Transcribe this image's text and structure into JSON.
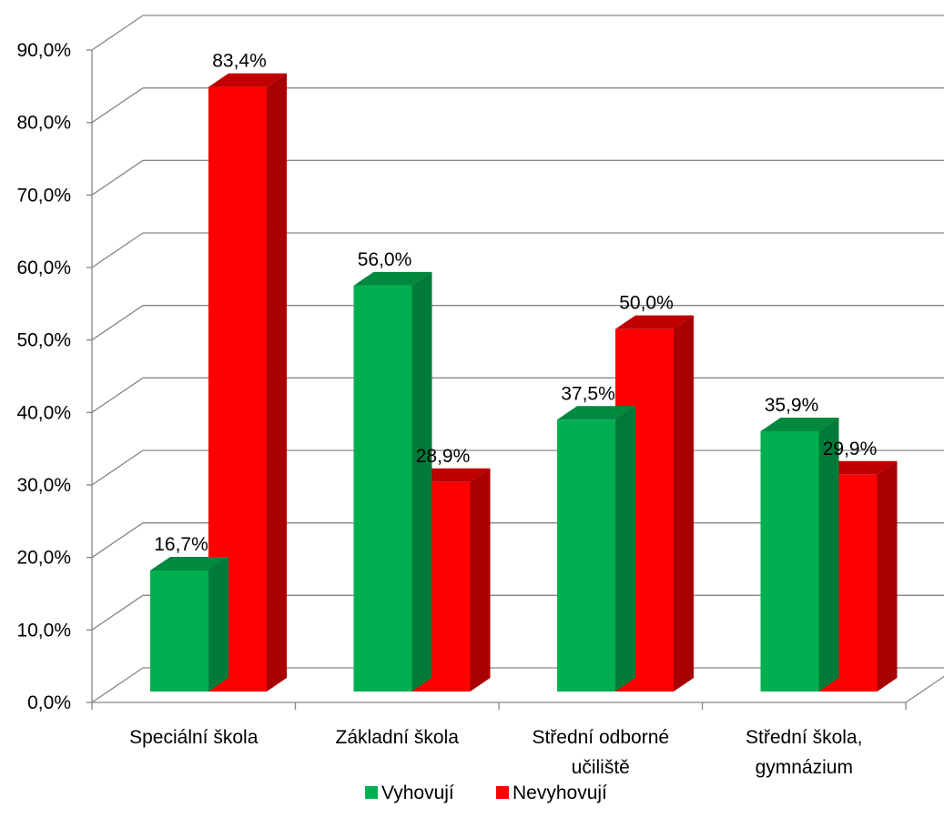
{
  "chart_data": {
    "type": "bar",
    "categories": [
      "Speciální škola",
      "Základní škola",
      "Střední odborné učiliště",
      "Střední škola, gymnázium"
    ],
    "category_lines": [
      [
        "Speciální škola"
      ],
      [
        "Základní škola"
      ],
      [
        "Střední odborné",
        "učiliště"
      ],
      [
        "Střední škola,",
        "gymnázium"
      ]
    ],
    "series": [
      {
        "name": "Vyhovují",
        "values": [
          16.7,
          56.0,
          37.5,
          35.9
        ],
        "labels": [
          "16,7%",
          "56,0%",
          "37,5%",
          "35,9%"
        ],
        "color": "#00b050",
        "side_color": "#007a38",
        "top_color": "#00893f"
      },
      {
        "name": "Nevyhovují",
        "values": [
          83.4,
          28.9,
          50.0,
          29.9
        ],
        "labels": [
          "83,4%",
          "28,9%",
          "50,0%",
          "29,9%"
        ],
        "color": "#ff0000",
        "side_color": "#a80000",
        "top_color": "#c00000"
      }
    ],
    "y_ticks": [
      "0,0%",
      "10,0%",
      "20,0%",
      "30,0%",
      "40,0%",
      "50,0%",
      "60,0%",
      "70,0%",
      "80,0%",
      "90,0%"
    ],
    "ylim": [
      0,
      90
    ],
    "grid": true,
    "legend_position": "bottom",
    "title": "",
    "xlabel": "",
    "ylabel": ""
  }
}
